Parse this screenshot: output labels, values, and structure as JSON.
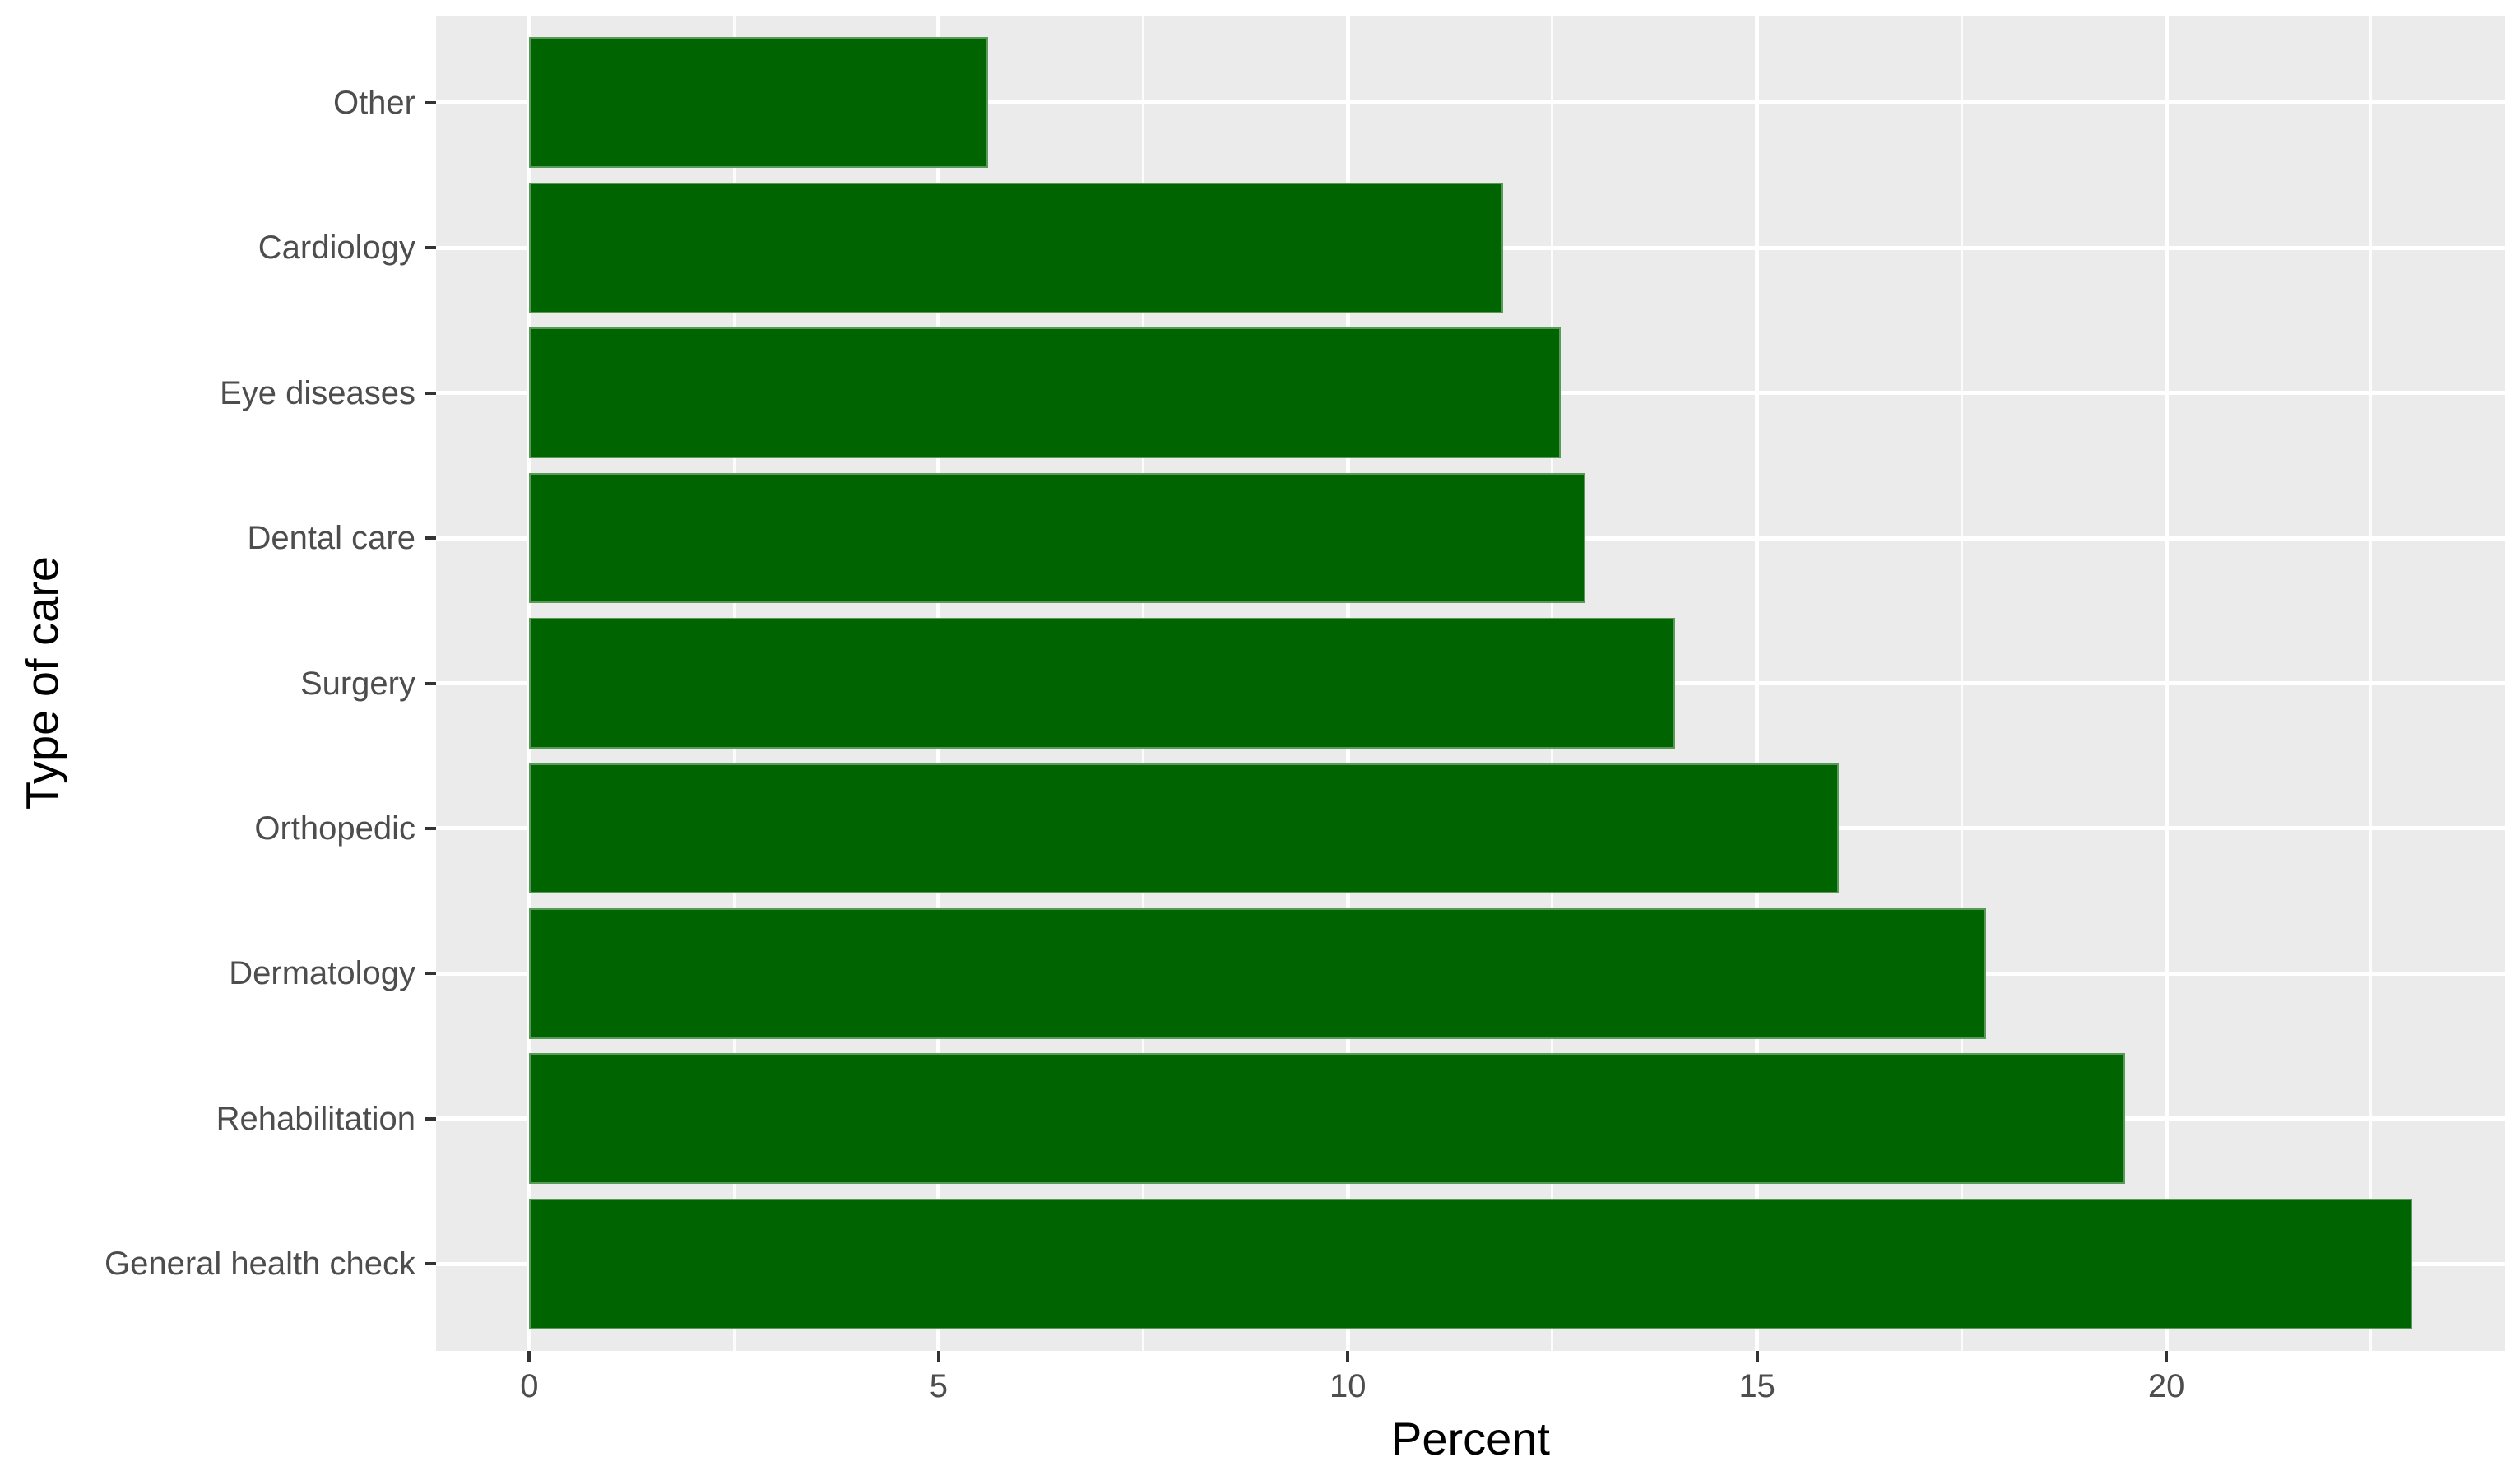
{
  "chart_data": {
    "type": "bar",
    "orientation": "horizontal",
    "title": "",
    "xlabel": "Percent",
    "ylabel": "Type of care",
    "categories": [
      "Other",
      "Cardiology",
      "Eye diseases",
      "Dental care",
      "Surgery",
      "Orthopedic",
      "Dermatology",
      "Rehabilitation",
      "General health check"
    ],
    "values": [
      5.6,
      11.9,
      12.6,
      12.9,
      14.0,
      16.0,
      17.8,
      19.5,
      23.0
    ],
    "x_major_ticks": [
      0,
      5,
      10,
      15,
      20
    ],
    "x_major_tick_labels": [
      "0",
      "5",
      "10",
      "15",
      "20"
    ],
    "x_minor_gridlines": [
      2.5,
      7.5,
      12.5,
      17.5,
      22.5
    ],
    "xlim": [
      -1.14,
      24.14
    ],
    "grid": true,
    "legend": "none",
    "bar_relative_width": 0.9,
    "colors": {
      "bar_fill": "#006400",
      "panel_background": "#EBEBEB",
      "gridline": "#FFFFFF",
      "axis_text": "#4D4D4D",
      "axis_title": "#000000",
      "tick_mark": "#333333",
      "figure_background": "#FFFFFF"
    }
  }
}
